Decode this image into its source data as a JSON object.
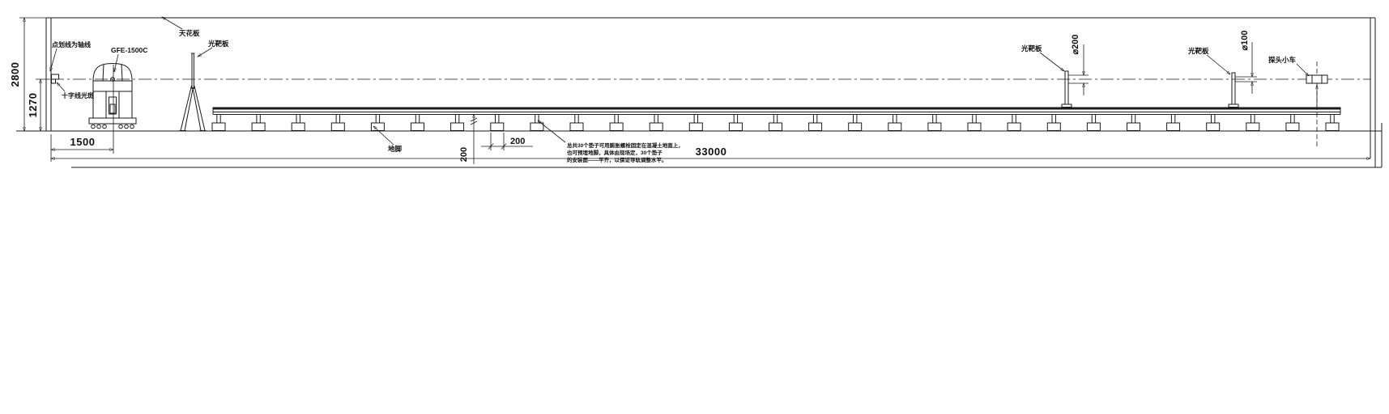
{
  "drawing": {
    "labels": {
      "wall_axis_note": "点划线为轴线",
      "cross_line_spot": "十字线光斑",
      "machine_model": "GFE-1500C",
      "ceiling": "天花板",
      "tripod_target": "光靶板",
      "mid_target": "光靶板",
      "right_target": "光靶板",
      "ground_anchor": "地脚",
      "probe_cart": "探头小车"
    },
    "dimensions": {
      "room_height": "2800",
      "axis_height": "1270",
      "laser_offset": "1500",
      "anchor_depth": "200",
      "pad_width": "200",
      "total_length": "33000",
      "mid_target_diameter": "⌀200",
      "right_target_diameter": "⌀100"
    },
    "annotation": [
      "总共30个垫子可用膨胀螺栓固定在混凝土地面上，",
      "也可预埋地脚，具体由现场定，30个垫子",
      "的安装面——平齐，以保证导轨调整水平。"
    ],
    "colors": {
      "line": "#1a1a1a",
      "background": "#ffffff"
    }
  }
}
